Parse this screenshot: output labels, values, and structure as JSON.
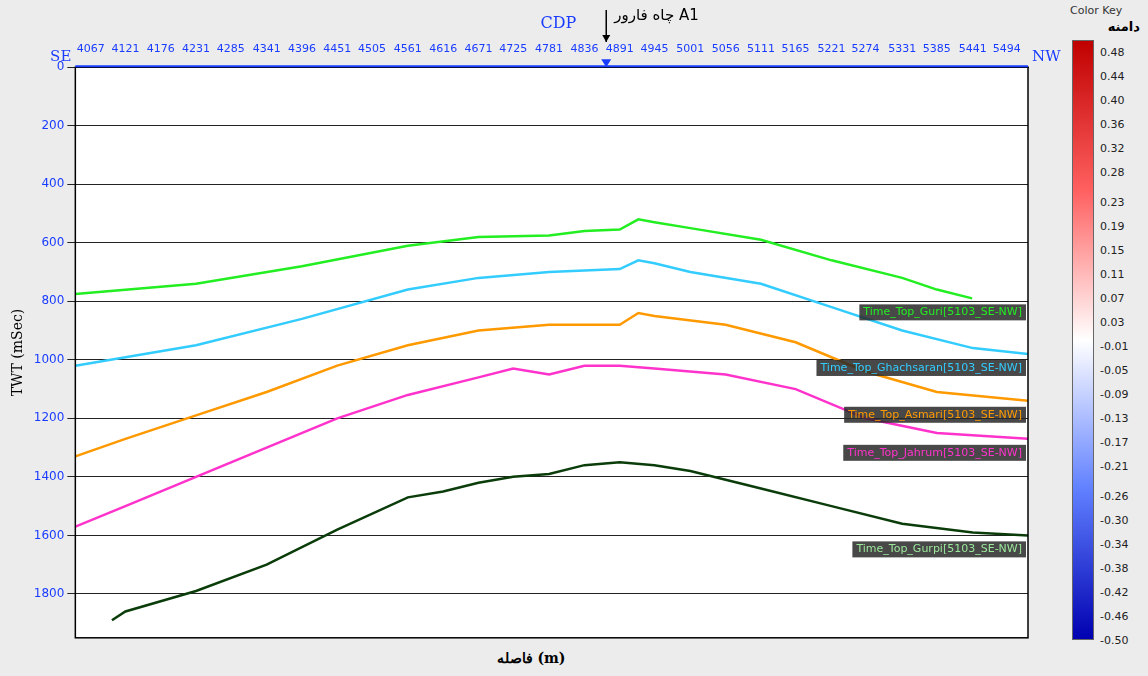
{
  "chart_data": {
    "type": "line",
    "x_title": "CDP",
    "x_label": "فاصله (m)",
    "y_label": "TWT (mSec)",
    "direction_labels": {
      "left": "SE",
      "right": "NW"
    },
    "annotations": [
      {
        "text": "چاه فارور A1",
        "x": 4870
      }
    ],
    "xlim": [
      4043,
      5527
    ],
    "xticks": [
      4067,
      4121,
      4176,
      4231,
      4285,
      4341,
      4396,
      4451,
      4505,
      4561,
      4616,
      4671,
      4725,
      4781,
      4836,
      4891,
      4945,
      5001,
      5056,
      5111,
      5165,
      5221,
      5274,
      5331,
      5385,
      5441,
      5494
    ],
    "ylim": [
      0,
      1950
    ],
    "yticks": [
      0,
      200,
      400,
      600,
      800,
      1000,
      1200,
      1400,
      1600,
      1800
    ],
    "grid": true,
    "series": [
      {
        "name": "Time_Top_Guri[5103_SE-NW]",
        "color": "#22ee22",
        "x": [
          4043,
          4231,
          4396,
          4561,
          4671,
          4781,
          4836,
          4891,
          4920,
          4945,
          5001,
          5111,
          5221,
          5331,
          5385,
          5440
        ],
        "values": [
          775,
          740,
          680,
          610,
          580,
          575,
          560,
          555,
          520,
          530,
          550,
          590,
          660,
          720,
          760,
          790
        ]
      },
      {
        "name": "Time_Top_Ghachsaran[5103_SE-NW]",
        "color": "#33ccff",
        "x": [
          4043,
          4231,
          4396,
          4561,
          4671,
          4781,
          4891,
          4920,
          4945,
          5001,
          5111,
          5221,
          5331,
          5441,
          5527
        ],
        "values": [
          1020,
          950,
          860,
          760,
          720,
          700,
          690,
          660,
          670,
          700,
          740,
          820,
          900,
          960,
          980
        ]
      },
      {
        "name": "Time_Top_Asmari[5103_SE-NW]",
        "color": "#ff9900",
        "x": [
          4043,
          4121,
          4231,
          4341,
          4451,
          4561,
          4671,
          4781,
          4891,
          4920,
          4945,
          5056,
          5165,
          5274,
          5385,
          5527
        ],
        "values": [
          1330,
          1270,
          1190,
          1110,
          1020,
          950,
          900,
          880,
          880,
          840,
          850,
          880,
          940,
          1040,
          1110,
          1140
        ]
      },
      {
        "name": "Time_Top_Jahrum[5103_SE-NW]",
        "color": "#ff33cc",
        "x": [
          4043,
          4121,
          4231,
          4341,
          4451,
          4561,
          4671,
          4725,
          4781,
          4836,
          4891,
          4945,
          5056,
          5165,
          5274,
          5385,
          5527
        ],
        "values": [
          1570,
          1500,
          1400,
          1300,
          1200,
          1120,
          1060,
          1030,
          1050,
          1020,
          1020,
          1030,
          1050,
          1100,
          1200,
          1250,
          1270
        ]
      },
      {
        "name": "Time_Top_Gurpi[5103_SE-NW]",
        "color": "#0b3d0b",
        "x": [
          4100,
          4121,
          4231,
          4341,
          4451,
          4561,
          4616,
          4671,
          4725,
          4781,
          4836,
          4891,
          4945,
          5001,
          5111,
          5221,
          5331,
          5441,
          5527
        ],
        "values": [
          1890,
          1860,
          1790,
          1700,
          1580,
          1470,
          1450,
          1420,
          1400,
          1390,
          1360,
          1350,
          1360,
          1380,
          1440,
          1500,
          1560,
          1590,
          1600
        ]
      }
    ],
    "colorbar": {
      "title": "Color Key",
      "label": "دامنه",
      "range": [
        -0.5,
        0.5
      ],
      "ticks": [
        0.48,
        0.44,
        {
          "value": 0.4,
          "label": "0.40"
        },
        0.36,
        0.32,
        0.28,
        0.23,
        0.19,
        0.15,
        0.11,
        0.07,
        0.03,
        -0.01,
        -0.05,
        -0.09,
        -0.13,
        -0.17,
        -0.21,
        -0.26,
        {
          "value": -0.3,
          "label": "-0.30"
        },
        -0.34,
        -0.38,
        -0.42,
        -0.46,
        {
          "value": -0.5,
          "label": "-0.50"
        }
      ]
    }
  }
}
